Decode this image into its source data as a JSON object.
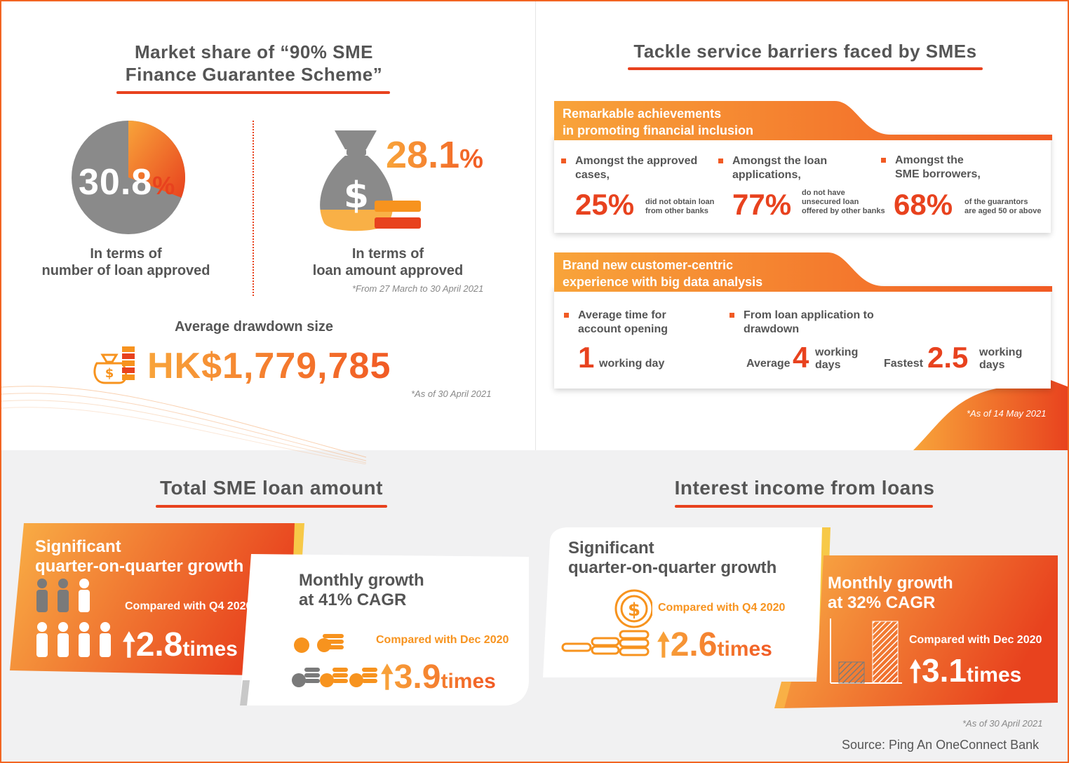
{
  "colors": {
    "accent": "#e8421e",
    "orange": "#f7931e",
    "grey": "#555555"
  },
  "market_share": {
    "title_line1": "Market share of “90% SME",
    "title_line2": "Finance Guarantee Scheme”",
    "count_pct_value": "30.8",
    "pct_sign": "%",
    "count_pct_fraction": 0.308,
    "count_caption_line1": "In terms of",
    "count_caption_line2": "number of loan approved",
    "amount_pct_value": "28.1",
    "amount_caption_line1": "In terms of",
    "amount_caption_line2": "loan amount approved",
    "period_note": "*From 27 March to 30 April 2021",
    "drawdown_label": "Average drawdown size",
    "drawdown_value": "HK$1,779,785",
    "drawdown_note": "*As of 30 April 2021",
    "icons": [
      "money-bag-icon",
      "coin-stack-icon"
    ]
  },
  "barriers": {
    "title": "Tackle service barriers faced by SMEs",
    "banner1_line1": "Remarkable achievements",
    "banner1_line2": "in promoting financial inclusion",
    "items": [
      {
        "label_line1": "Amongst the approved",
        "label_line2": "cases,",
        "big": "25%",
        "small_line1": "did not obtain loan",
        "small_line2": "from other banks",
        "small_line3": ""
      },
      {
        "label_line1": "Amongst the loan",
        "label_line2": "applications,",
        "big": "77%",
        "small_line1": "do not have",
        "small_line2": "unsecured loan",
        "small_line3": "offered by other banks"
      },
      {
        "label_line1": "Amongst the",
        "label_line2": "SME borrowers,",
        "big": "68%",
        "small_line1": "of the guarantors",
        "small_line2": "are aged 50 or above",
        "small_line3": ""
      }
    ],
    "banner2_line1": "Brand new customer-centric",
    "banner2_line2": "experience with big data analysis",
    "account_label_line1": "Average time for",
    "account_label_line2": "account opening",
    "account_value": "1",
    "account_unit": "working day",
    "drawdown_label_line1": "From loan application to",
    "drawdown_label_line2": "drawdown",
    "average_label": "Average",
    "average_value": "4",
    "average_unit_line1": "working",
    "average_unit_line2": "days",
    "fastest_label": "Fastest",
    "fastest_value": "2.5",
    "fastest_unit_line1": "working",
    "fastest_unit_line2": "days",
    "note": "*As of 14 May 2021"
  },
  "sme_loan": {
    "title": "Total SME loan amount",
    "card1_line1": "Significant",
    "card1_line2": "quarter-on-quarter growth",
    "card1_compare": "Compared with Q4 2020",
    "card1_value": "2.8",
    "card1_unit": "times",
    "card2_line1": "Monthly growth",
    "card2_line2": "at 41% CAGR",
    "card2_compare": "Compared with Dec 2020",
    "card2_value": "3.9",
    "card2_unit": "times",
    "icons": [
      "people-icon",
      "up-arrow-icon",
      "coin-stack-icon"
    ]
  },
  "interest": {
    "title": "Interest income from loans",
    "card1_line1": "Significant",
    "card1_line2": "quarter-on-quarter growth",
    "card1_compare": "Compared with Q4 2020",
    "card1_value": "2.6",
    "card1_unit": "times",
    "card2_line1": "Monthly growth",
    "card2_line2": "at 32% CAGR",
    "card2_compare": "Compared with Dec 2020",
    "card2_value": "3.1",
    "card2_unit": "times",
    "note": "*As of 30 April 2021",
    "icons": [
      "dollar-coin-icon",
      "bar-chart-icon",
      "up-arrow-icon"
    ]
  },
  "source": "Source: Ping An OneConnect Bank"
}
